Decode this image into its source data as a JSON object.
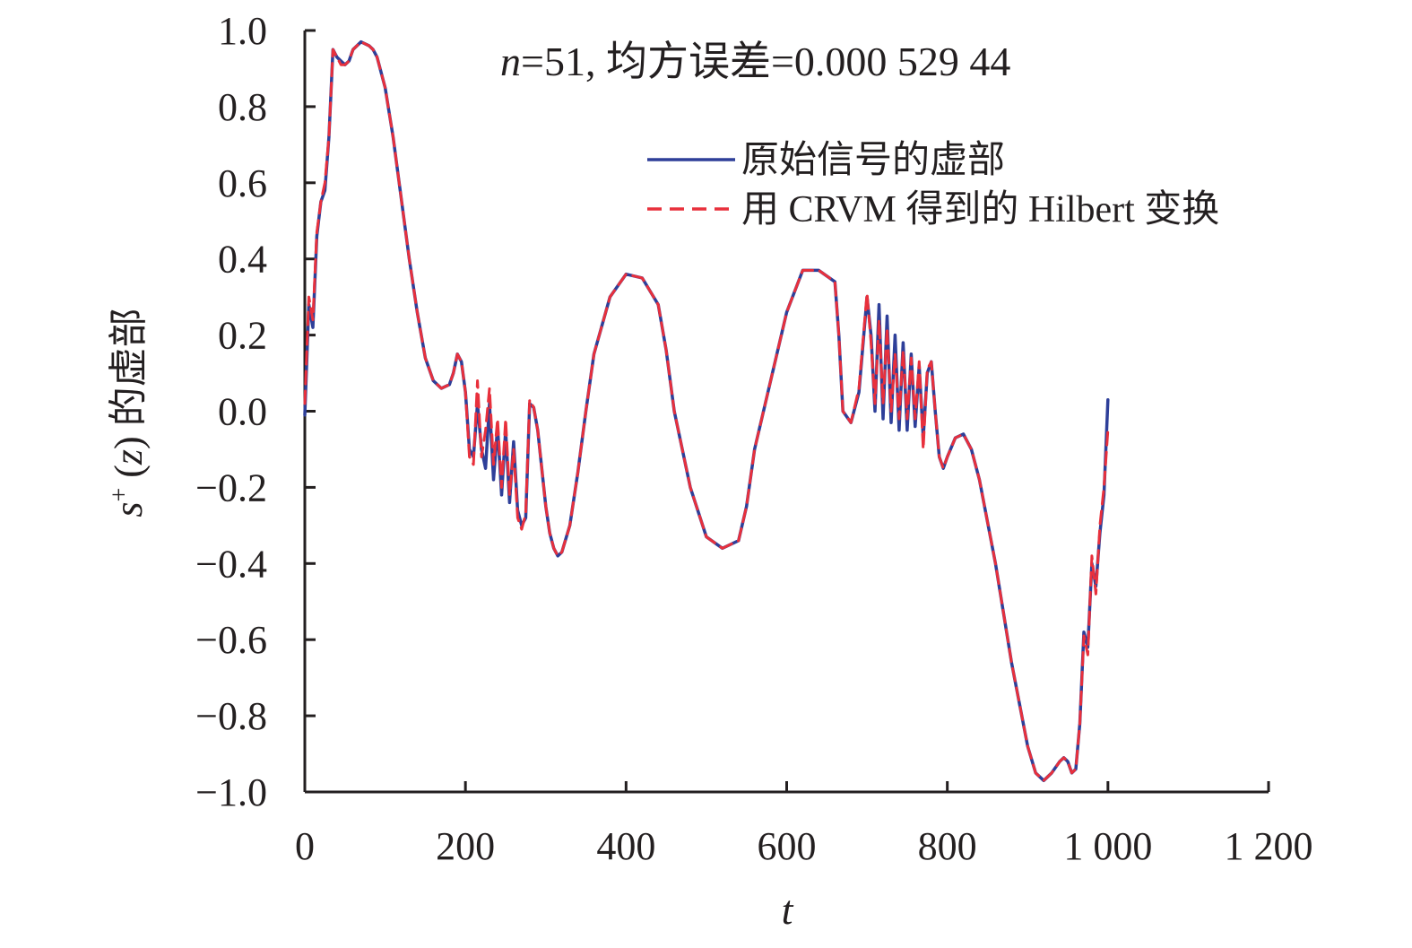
{
  "chart_data": {
    "type": "line",
    "title": "n=51, 均方误差=0.000 529 44",
    "title_var": "n",
    "title_rest": "=51, 均方误差=0.000 529 44",
    "xlabel": "t",
    "ylabel": "s⁺(z) 的虚部",
    "ylabel_base": "s",
    "ylabel_sup": "+",
    "ylabel_rest": " (",
    "ylabel_z": "z",
    "ylabel_tail": ") 的虚部",
    "xlim": [
      0,
      1200
    ],
    "ylim": [
      -1.0,
      1.0
    ],
    "xticks": [
      0,
      200,
      400,
      600,
      800,
      1000,
      1200
    ],
    "xtick_labels": [
      "0",
      "200",
      "400",
      "600",
      "800",
      "1 000",
      "1 200"
    ],
    "yticks": [
      1.0,
      0.8,
      0.6,
      0.4,
      0.2,
      0.0,
      -0.2,
      -0.4,
      -0.6,
      -0.8,
      -1.0
    ],
    "ytick_labels": [
      "1.0",
      "0.8",
      "0.6",
      "0.4",
      "0.2",
      "0.0",
      "−0.2",
      "−0.4",
      "−0.6",
      "−0.8",
      "−1.0"
    ],
    "grid": false,
    "legend_position": "top-right",
    "series": [
      {
        "name": "原始信号的虚部",
        "color": "#2e3f99",
        "style": "solid",
        "x": [
          0,
          5,
          10,
          15,
          20,
          25,
          30,
          35,
          40,
          45,
          50,
          55,
          60,
          70,
          80,
          85,
          90,
          100,
          110,
          120,
          130,
          140,
          150,
          160,
          170,
          180,
          185,
          190,
          195,
          200,
          205,
          210,
          215,
          220,
          225,
          230,
          235,
          240,
          245,
          250,
          255,
          260,
          265,
          270,
          275,
          280,
          285,
          290,
          295,
          300,
          305,
          310,
          315,
          320,
          330,
          340,
          350,
          360,
          380,
          400,
          420,
          440,
          450,
          460,
          480,
          500,
          520,
          540,
          550,
          560,
          580,
          600,
          620,
          640,
          660,
          665,
          670,
          680,
          690,
          700,
          705,
          710,
          715,
          720,
          725,
          730,
          735,
          740,
          745,
          750,
          755,
          760,
          765,
          770,
          775,
          780,
          785,
          790,
          795,
          800,
          810,
          820,
          830,
          840,
          860,
          880,
          900,
          910,
          920,
          930,
          940,
          945,
          950,
          955,
          960,
          965,
          970,
          975,
          980,
          985,
          990,
          995,
          1000
        ],
        "y": [
          -0.01,
          0.28,
          0.22,
          0.46,
          0.55,
          0.58,
          0.72,
          0.95,
          0.93,
          0.92,
          0.91,
          0.92,
          0.95,
          0.97,
          0.96,
          0.95,
          0.93,
          0.85,
          0.72,
          0.56,
          0.4,
          0.26,
          0.14,
          0.08,
          0.06,
          0.07,
          0.1,
          0.15,
          0.13,
          0.05,
          -0.1,
          -0.12,
          0.02,
          -0.1,
          -0.15,
          0.02,
          -0.18,
          -0.04,
          -0.22,
          -0.05,
          -0.24,
          -0.08,
          -0.26,
          -0.3,
          -0.28,
          0.02,
          0.01,
          -0.05,
          -0.15,
          -0.25,
          -0.32,
          -0.36,
          -0.38,
          -0.37,
          -0.3,
          -0.16,
          0.0,
          0.15,
          0.3,
          0.36,
          0.35,
          0.28,
          0.16,
          0.0,
          -0.2,
          -0.33,
          -0.36,
          -0.34,
          -0.25,
          -0.1,
          0.08,
          0.26,
          0.37,
          0.37,
          0.34,
          0.2,
          0.0,
          -0.03,
          0.05,
          0.3,
          0.2,
          0.0,
          0.28,
          -0.02,
          0.25,
          -0.03,
          0.2,
          -0.05,
          0.18,
          -0.05,
          0.15,
          -0.04,
          0.12,
          -0.07,
          0.1,
          0.13,
          0.0,
          -0.12,
          -0.15,
          -0.12,
          -0.07,
          -0.06,
          -0.1,
          -0.18,
          -0.4,
          -0.66,
          -0.88,
          -0.95,
          -0.97,
          -0.95,
          -0.92,
          -0.91,
          -0.92,
          -0.95,
          -0.94,
          -0.82,
          -0.58,
          -0.62,
          -0.4,
          -0.46,
          -0.32,
          -0.22,
          0.03
        ]
      },
      {
        "name": "用 CRVM 得到的 Hilbert 变换",
        "color": "#e8303c",
        "style": "dashed",
        "x": [
          0,
          5,
          10,
          15,
          20,
          25,
          30,
          35,
          40,
          45,
          50,
          55,
          60,
          70,
          80,
          85,
          90,
          100,
          110,
          120,
          130,
          140,
          150,
          160,
          170,
          180,
          185,
          190,
          195,
          200,
          205,
          210,
          215,
          220,
          225,
          230,
          235,
          240,
          245,
          250,
          255,
          260,
          265,
          270,
          275,
          280,
          285,
          290,
          295,
          300,
          305,
          310,
          315,
          320,
          330,
          340,
          350,
          360,
          380,
          400,
          420,
          440,
          450,
          460,
          480,
          500,
          520,
          540,
          550,
          560,
          580,
          600,
          620,
          640,
          660,
          665,
          670,
          680,
          690,
          700,
          705,
          710,
          715,
          720,
          725,
          730,
          735,
          740,
          745,
          750,
          755,
          760,
          765,
          770,
          775,
          780,
          785,
          790,
          795,
          800,
          810,
          820,
          830,
          840,
          860,
          880,
          900,
          910,
          920,
          930,
          940,
          945,
          950,
          955,
          960,
          965,
          970,
          975,
          980,
          985,
          990,
          995,
          1000
        ],
        "y": [
          0.02,
          0.3,
          0.24,
          0.47,
          0.55,
          0.6,
          0.72,
          0.95,
          0.93,
          0.91,
          0.91,
          0.92,
          0.95,
          0.97,
          0.96,
          0.95,
          0.93,
          0.85,
          0.72,
          0.56,
          0.4,
          0.26,
          0.14,
          0.08,
          0.06,
          0.07,
          0.1,
          0.15,
          0.13,
          0.05,
          -0.12,
          -0.14,
          0.08,
          -0.12,
          -0.05,
          0.06,
          -0.14,
          -0.02,
          -0.2,
          -0.02,
          -0.22,
          -0.1,
          -0.28,
          -0.31,
          -0.27,
          0.03,
          0.01,
          -0.05,
          -0.15,
          -0.25,
          -0.32,
          -0.36,
          -0.38,
          -0.37,
          -0.3,
          -0.16,
          0.0,
          0.15,
          0.3,
          0.36,
          0.35,
          0.28,
          0.16,
          0.0,
          -0.2,
          -0.33,
          -0.36,
          -0.34,
          -0.25,
          -0.1,
          0.08,
          0.26,
          0.37,
          0.37,
          0.34,
          0.2,
          0.0,
          -0.03,
          0.06,
          0.31,
          0.18,
          0.02,
          0.24,
          0.02,
          0.22,
          0.0,
          0.15,
          -0.02,
          0.16,
          -0.02,
          0.14,
          -0.02,
          0.13,
          -0.1,
          0.11,
          0.13,
          0.0,
          -0.12,
          -0.15,
          -0.12,
          -0.07,
          -0.06,
          -0.1,
          -0.18,
          -0.4,
          -0.66,
          -0.88,
          -0.95,
          -0.97,
          -0.95,
          -0.92,
          -0.91,
          -0.92,
          -0.95,
          -0.94,
          -0.82,
          -0.59,
          -0.64,
          -0.38,
          -0.48,
          -0.3,
          -0.2,
          -0.05
        ]
      }
    ]
  }
}
